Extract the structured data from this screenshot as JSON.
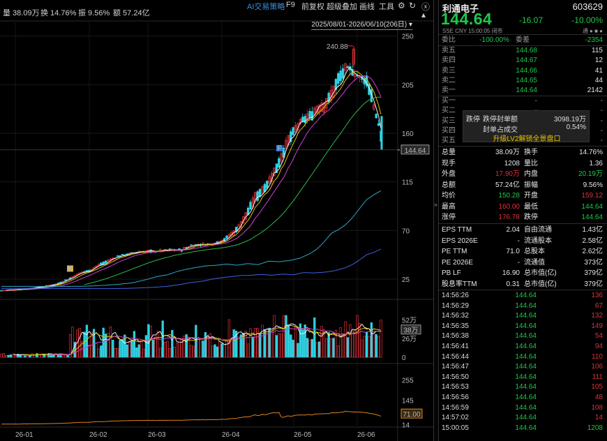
{
  "toolbar": {
    "vol": "量 38.09万",
    "turnover": "换 14.76%",
    "amplitude": "振 9.56%",
    "amount": "额 57.24亿",
    "menus": [
      "AI交易策略",
      "F9",
      "前复权",
      "超级叠加",
      "画线",
      "工具"
    ],
    "range": "2025/08/01-2026/06/10(206日)"
  },
  "chart_data": [
    {
      "type": "candlestick",
      "title": "",
      "y_ticks": [
        250,
        205,
        160,
        115,
        70,
        25
      ],
      "x_ticks": [
        "26-01",
        "26-02",
        "26-03",
        "26-04",
        "26-05",
        "26-06"
      ],
      "current_price_label": "144.64",
      "max_label": "240.88",
      "ylim": [
        14,
        255
      ],
      "markers": [
        {
          "label": "E",
          "day": 100
        },
        {
          "label": "F",
          "day": 400
        }
      ],
      "ohlc_trend": [
        [
          0,
          14,
          14.5
        ],
        [
          20,
          15,
          15.2
        ],
        [
          40,
          16,
          16.4
        ],
        [
          60,
          17.5,
          18
        ],
        [
          80,
          20,
          20.5
        ],
        [
          100,
          25,
          26
        ],
        [
          115,
          30,
          31
        ],
        [
          130,
          33,
          34
        ],
        [
          145,
          38,
          40
        ],
        [
          160,
          42,
          44
        ],
        [
          170,
          47,
          46
        ],
        [
          185,
          48,
          49
        ],
        [
          200,
          51,
          50
        ],
        [
          215,
          49,
          52
        ],
        [
          230,
          52,
          50
        ],
        [
          245,
          51,
          53
        ],
        [
          260,
          53,
          51
        ],
        [
          275,
          56,
          57
        ],
        [
          290,
          58,
          56
        ],
        [
          305,
          57,
          58
        ],
        [
          320,
          60,
          62
        ],
        [
          335,
          66,
          70
        ],
        [
          345,
          72,
          78
        ],
        [
          355,
          84,
          90
        ],
        [
          365,
          95,
          104
        ],
        [
          375,
          104,
          110
        ],
        [
          385,
          112,
          118
        ],
        [
          395,
          122,
          130
        ],
        [
          405,
          138,
          145
        ],
        [
          415,
          150,
          160
        ],
        [
          425,
          162,
          168
        ],
        [
          435,
          170,
          175
        ],
        [
          445,
          173,
          180
        ],
        [
          455,
          180,
          186
        ],
        [
          465,
          182,
          190
        ],
        [
          475,
          190,
          200
        ],
        [
          485,
          205,
          215
        ],
        [
          495,
          215,
          223
        ],
        [
          505,
          222,
          215
        ],
        [
          515,
          210,
          212
        ],
        [
          525,
          214,
          205
        ],
        [
          533,
          200,
          188
        ],
        [
          540,
          170,
          176
        ],
        [
          548,
          160,
          145
        ]
      ],
      "series": [
        {
          "name": "MA5",
          "color": "#f0f0f0"
        },
        {
          "name": "MA10",
          "color": "#e6c200"
        },
        {
          "name": "MA20",
          "color": "#d040d0"
        },
        {
          "name": "MA60",
          "color": "#2fb84a"
        },
        {
          "name": "MA120",
          "color": "#2fa8c8"
        },
        {
          "name": "MA250",
          "color": "#4060e0"
        }
      ]
    },
    {
      "type": "bar",
      "title": "",
      "y_ticks": [
        52,
        26,
        0
      ],
      "y_tick_labels": [
        "52万",
        "26万",
        "0"
      ],
      "current_label": "38万",
      "ylim": [
        0,
        60
      ]
    },
    {
      "type": "line",
      "title": "",
      "y_ticks": [
        255,
        145,
        14
      ],
      "current_label": "71.00",
      "ylim": [
        0,
        290
      ]
    }
  ],
  "quote": {
    "name": "利通电子",
    "code": "603629",
    "price": "144.64",
    "change": "-16.07",
    "pct": "-10.00%",
    "sub": "SSE  CNY  15:00:05  闭市",
    "badges": "通  ●  ■  ●"
  },
  "orderbook": {
    "ratio": {
      "label": "委比",
      "value": "-100.00%",
      "diff_label": "委差",
      "diff": "-2354"
    },
    "asks": [
      {
        "label": "卖五",
        "price": "144.68",
        "vol": "115"
      },
      {
        "label": "卖四",
        "price": "144.67",
        "vol": "12"
      },
      {
        "label": "卖三",
        "price": "144.66",
        "vol": "41"
      },
      {
        "label": "卖二",
        "price": "144.65",
        "vol": "44"
      },
      {
        "label": "卖一",
        "price": "144.64",
        "vol": "2142"
      }
    ],
    "bids": [
      "买一",
      "买二",
      "买三",
      "买四",
      "买五"
    ],
    "bid_dash": "-",
    "popup": {
      "tag": "跌停",
      "label1": "跌停封单额",
      "value1": "3098.19万",
      "label2": "封单占成交",
      "value2": "0.54%",
      "button": "升级LV2解锁全景盘口"
    }
  },
  "stats": [
    [
      "总量",
      "38.09万",
      "换手",
      "14.76%"
    ],
    [
      "现手",
      "1208",
      "量比",
      "1.36"
    ],
    [
      "外盘",
      "17.90万",
      "内盘",
      "20.19万"
    ],
    [
      "总额",
      "57.24亿",
      "振幅",
      "9.56%"
    ],
    [
      "均价",
      "150.28",
      "开盘",
      "159.12"
    ],
    [
      "最高",
      "160.00",
      "最低",
      "144.64"
    ],
    [
      "涨停",
      "176.78",
      "跌停",
      "144.64"
    ]
  ],
  "fundamentals": [
    [
      "EPS TTM",
      "2.04",
      "自由流通",
      "1.43亿"
    ],
    [
      "EPS 2026E",
      "-",
      "流通股本",
      "2.58亿"
    ],
    [
      "PE TTM",
      "71.0",
      "总股本",
      "2.62亿"
    ],
    [
      "PE 2026E",
      "-",
      "流通值",
      "373亿"
    ],
    [
      "PB LF",
      "16.90",
      "总市值(亿)",
      "379亿"
    ],
    [
      "股息率TTM",
      "0.31",
      "总市值(亿)",
      "379亿"
    ]
  ],
  "ticks": [
    [
      "14:56:26",
      "144.64",
      "136"
    ],
    [
      "14:56:29",
      "144.64",
      "67"
    ],
    [
      "14:56:32",
      "144.64",
      "132"
    ],
    [
      "14:56:35",
      "144.64",
      "149"
    ],
    [
      "14:56:38",
      "144.64",
      "54"
    ],
    [
      "14:56:41",
      "144.64",
      "94"
    ],
    [
      "14:56:44",
      "144.64",
      "110"
    ],
    [
      "14:56:47",
      "144.64",
      "106"
    ],
    [
      "14:56:50",
      "144.64",
      "111"
    ],
    [
      "14:56:53",
      "144.64",
      "105"
    ],
    [
      "14:56:56",
      "144.64",
      "48"
    ],
    [
      "14:56:59",
      "144.64",
      "108"
    ],
    [
      "14:57:02",
      "144.64",
      "14"
    ],
    [
      "15:00:05",
      "144.64",
      "1208"
    ]
  ],
  "colors": {
    "up": "#e0303a",
    "down": "#1fc84a",
    "cyan": "#2fd0e0",
    "accent": "#3a8fe0"
  }
}
